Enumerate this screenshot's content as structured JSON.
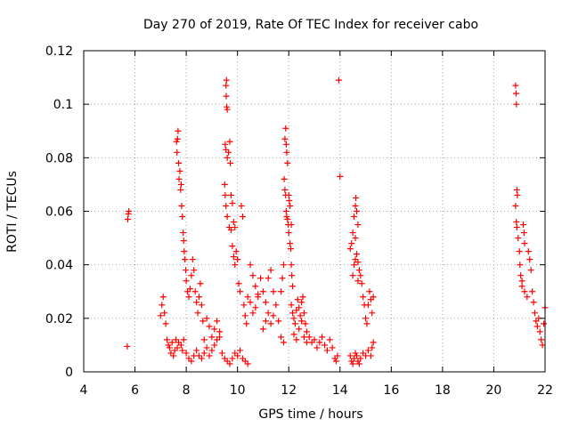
{
  "chart_data": {
    "type": "scatter",
    "title": "Day 270 of 2019, Rate Of TEC Index for receiver cabo",
    "xlabel": "GPS time / hours",
    "ylabel": "ROTI / TECUs",
    "xlim": [
      4,
      22
    ],
    "ylim": [
      0,
      0.12
    ],
    "x_ticks": [
      4,
      6,
      8,
      10,
      12,
      14,
      16,
      18,
      20,
      22
    ],
    "y_ticks": [
      0,
      0.02,
      0.04,
      0.06,
      0.08,
      0.1,
      0.12
    ],
    "x_tick_labels": [
      "4",
      "6",
      "8",
      "10",
      "12",
      "14",
      "16",
      "18",
      "20",
      "22"
    ],
    "y_tick_labels": [
      "0",
      "0.02",
      "0.04",
      "0.06",
      "0.08",
      "0.1",
      "0.12"
    ],
    "grid": true,
    "marker": "+",
    "color": "#ff0000",
    "series": [
      {
        "name": "ROTI",
        "points": [
          [
            5.72,
            0.057
          ],
          [
            5.74,
            0.059
          ],
          [
            5.76,
            0.06
          ],
          [
            5.7,
            0.0095
          ],
          [
            7.0,
            0.021
          ],
          [
            7.05,
            0.025
          ],
          [
            7.1,
            0.028
          ],
          [
            7.15,
            0.022
          ],
          [
            7.2,
            0.018
          ],
          [
            7.25,
            0.012
          ],
          [
            7.3,
            0.01
          ],
          [
            7.35,
            0.009
          ],
          [
            7.4,
            0.007
          ],
          [
            7.45,
            0.011
          ],
          [
            7.5,
            0.006
          ],
          [
            7.55,
            0.008
          ],
          [
            7.6,
            0.012
          ],
          [
            7.65,
            0.009
          ],
          [
            7.7,
            0.011
          ],
          [
            7.62,
            0.086
          ],
          [
            7.64,
            0.082
          ],
          [
            7.66,
            0.087
          ],
          [
            7.68,
            0.09
          ],
          [
            7.7,
            0.078
          ],
          [
            7.72,
            0.072
          ],
          [
            7.75,
            0.075
          ],
          [
            7.78,
            0.068
          ],
          [
            7.8,
            0.07
          ],
          [
            7.82,
            0.062
          ],
          [
            7.85,
            0.058
          ],
          [
            7.88,
            0.052
          ],
          [
            7.9,
            0.049
          ],
          [
            7.92,
            0.045
          ],
          [
            7.95,
            0.042
          ],
          [
            7.98,
            0.038
          ],
          [
            8.0,
            0.034
          ],
          [
            8.05,
            0.03
          ],
          [
            8.1,
            0.028
          ],
          [
            8.15,
            0.031
          ],
          [
            8.2,
            0.036
          ],
          [
            8.25,
            0.042
          ],
          [
            8.3,
            0.038
          ],
          [
            8.35,
            0.03
          ],
          [
            8.4,
            0.026
          ],
          [
            8.45,
            0.022
          ],
          [
            8.5,
            0.028
          ],
          [
            8.55,
            0.033
          ],
          [
            8.6,
            0.025
          ],
          [
            8.65,
            0.019
          ],
          [
            8.7,
            0.012
          ],
          [
            7.8,
            0.01
          ],
          [
            7.85,
            0.008
          ],
          [
            7.9,
            0.012
          ],
          [
            8.0,
            0.007
          ],
          [
            8.1,
            0.005
          ],
          [
            8.2,
            0.004
          ],
          [
            8.3,
            0.006
          ],
          [
            8.4,
            0.008
          ],
          [
            8.5,
            0.006
          ],
          [
            8.6,
            0.005
          ],
          [
            8.7,
            0.007
          ],
          [
            8.8,
            0.009
          ],
          [
            8.9,
            0.006
          ],
          [
            9.0,
            0.008
          ],
          [
            9.1,
            0.01
          ],
          [
            9.2,
            0.012
          ],
          [
            9.3,
            0.015
          ],
          [
            8.8,
            0.02
          ],
          [
            8.9,
            0.017
          ],
          [
            9.0,
            0.013
          ],
          [
            9.1,
            0.016
          ],
          [
            9.2,
            0.019
          ],
          [
            9.3,
            0.013
          ],
          [
            9.4,
            0.007
          ],
          [
            9.5,
            0.005
          ],
          [
            9.6,
            0.004
          ],
          [
            9.7,
            0.003
          ],
          [
            9.8,
            0.005
          ],
          [
            9.9,
            0.007
          ],
          [
            10.0,
            0.006
          ],
          [
            10.1,
            0.008
          ],
          [
            10.2,
            0.005
          ],
          [
            10.3,
            0.004
          ],
          [
            10.4,
            0.003
          ],
          [
            9.55,
            0.107
          ],
          [
            9.57,
            0.109
          ],
          [
            9.56,
            0.103
          ],
          [
            9.58,
            0.099
          ],
          [
            9.6,
            0.098
          ],
          [
            9.52,
            0.085
          ],
          [
            9.55,
            0.083
          ],
          [
            9.6,
            0.08
          ],
          [
            9.65,
            0.082
          ],
          [
            9.7,
            0.086
          ],
          [
            9.72,
            0.078
          ],
          [
            9.5,
            0.07
          ],
          [
            9.52,
            0.066
          ],
          [
            9.55,
            0.062
          ],
          [
            9.6,
            0.058
          ],
          [
            9.68,
            0.054
          ],
          [
            9.75,
            0.053
          ],
          [
            9.8,
            0.047
          ],
          [
            9.85,
            0.043
          ],
          [
            9.9,
            0.04
          ],
          [
            9.95,
            0.045
          ],
          [
            10.0,
            0.042
          ],
          [
            10.05,
            0.033
          ],
          [
            10.1,
            0.03
          ],
          [
            10.15,
            0.062
          ],
          [
            10.2,
            0.058
          ],
          [
            10.25,
            0.025
          ],
          [
            10.3,
            0.021
          ],
          [
            10.35,
            0.018
          ],
          [
            9.75,
            0.066
          ],
          [
            9.8,
            0.063
          ],
          [
            9.85,
            0.056
          ],
          [
            9.9,
            0.054
          ],
          [
            10.4,
            0.028
          ],
          [
            10.5,
            0.026
          ],
          [
            10.6,
            0.022
          ],
          [
            10.7,
            0.024
          ],
          [
            10.8,
            0.029
          ],
          [
            10.9,
            0.035
          ],
          [
            11.0,
            0.03
          ],
          [
            11.1,
            0.026
          ],
          [
            11.2,
            0.022
          ],
          [
            11.3,
            0.018
          ],
          [
            11.4,
            0.021
          ],
          [
            11.5,
            0.025
          ],
          [
            11.6,
            0.019
          ],
          [
            11.7,
            0.013
          ],
          [
            11.8,
            0.011
          ],
          [
            10.5,
            0.04
          ],
          [
            10.6,
            0.036
          ],
          [
            10.7,
            0.032
          ],
          [
            10.8,
            0.028
          ],
          [
            11.0,
            0.016
          ],
          [
            11.1,
            0.019
          ],
          [
            11.2,
            0.035
          ],
          [
            11.3,
            0.038
          ],
          [
            11.4,
            0.03
          ],
          [
            11.85,
            0.087
          ],
          [
            11.88,
            0.091
          ],
          [
            11.9,
            0.085
          ],
          [
            11.92,
            0.082
          ],
          [
            11.95,
            0.078
          ],
          [
            11.82,
            0.072
          ],
          [
            11.85,
            0.068
          ],
          [
            11.88,
            0.066
          ],
          [
            11.9,
            0.06
          ],
          [
            11.92,
            0.058
          ],
          [
            11.95,
            0.057
          ],
          [
            11.98,
            0.055
          ],
          [
            12.0,
            0.052
          ],
          [
            12.05,
            0.048
          ],
          [
            12.08,
            0.046
          ],
          [
            12.1,
            0.04
          ],
          [
            12.12,
            0.036
          ],
          [
            12.15,
            0.032
          ],
          [
            11.8,
            0.04
          ],
          [
            11.75,
            0.035
          ],
          [
            11.7,
            0.03
          ],
          [
            12.0,
            0.066
          ],
          [
            12.02,
            0.064
          ],
          [
            12.05,
            0.062
          ],
          [
            12.1,
            0.055
          ],
          [
            12.1,
            0.025
          ],
          [
            12.15,
            0.022
          ],
          [
            12.2,
            0.02
          ],
          [
            12.25,
            0.018
          ],
          [
            12.3,
            0.023
          ],
          [
            12.35,
            0.027
          ],
          [
            12.4,
            0.024
          ],
          [
            12.45,
            0.021
          ],
          [
            12.5,
            0.026
          ],
          [
            12.55,
            0.028
          ],
          [
            12.6,
            0.022
          ],
          [
            12.65,
            0.018
          ],
          [
            12.7,
            0.015
          ],
          [
            12.2,
            0.014
          ],
          [
            12.3,
            0.012
          ],
          [
            12.4,
            0.016
          ],
          [
            12.5,
            0.019
          ],
          [
            12.6,
            0.013
          ],
          [
            12.7,
            0.011
          ],
          [
            12.8,
            0.013
          ],
          [
            12.9,
            0.011
          ],
          [
            13.0,
            0.012
          ],
          [
            13.1,
            0.009
          ],
          [
            13.2,
            0.011
          ],
          [
            13.3,
            0.013
          ],
          [
            13.4,
            0.01
          ],
          [
            13.5,
            0.008
          ],
          [
            13.6,
            0.012
          ],
          [
            13.7,
            0.009
          ],
          [
            13.8,
            0.005
          ],
          [
            13.85,
            0.004
          ],
          [
            13.9,
            0.006
          ],
          [
            13.95,
            0.109
          ],
          [
            14.0,
            0.073
          ],
          [
            14.4,
            0.046
          ],
          [
            14.45,
            0.048
          ],
          [
            14.5,
            0.052
          ],
          [
            14.55,
            0.058
          ],
          [
            14.6,
            0.062
          ],
          [
            14.62,
            0.065
          ],
          [
            14.65,
            0.06
          ],
          [
            14.7,
            0.055
          ],
          [
            14.6,
            0.05
          ],
          [
            14.65,
            0.044
          ],
          [
            14.7,
            0.041
          ],
          [
            14.75,
            0.038
          ],
          [
            14.8,
            0.036
          ],
          [
            14.85,
            0.033
          ],
          [
            14.9,
            0.028
          ],
          [
            14.95,
            0.025
          ],
          [
            15.0,
            0.02
          ],
          [
            15.05,
            0.018
          ],
          [
            15.1,
            0.025
          ],
          [
            15.15,
            0.03
          ],
          [
            15.2,
            0.027
          ],
          [
            15.25,
            0.022
          ],
          [
            15.3,
            0.028
          ],
          [
            14.5,
            0.036
          ],
          [
            14.55,
            0.04
          ],
          [
            14.6,
            0.042
          ],
          [
            14.7,
            0.034
          ],
          [
            14.4,
            0.006
          ],
          [
            14.45,
            0.004
          ],
          [
            14.5,
            0.003
          ],
          [
            14.55,
            0.005
          ],
          [
            14.6,
            0.007
          ],
          [
            14.65,
            0.006
          ],
          [
            14.7,
            0.004
          ],
          [
            14.75,
            0.003
          ],
          [
            14.8,
            0.005
          ],
          [
            14.9,
            0.007
          ],
          [
            15.0,
            0.006
          ],
          [
            15.1,
            0.008
          ],
          [
            15.2,
            0.006
          ],
          [
            15.25,
            0.009
          ],
          [
            15.3,
            0.011
          ],
          [
            20.85,
            0.107
          ],
          [
            20.87,
            0.104
          ],
          [
            20.88,
            0.1
          ],
          [
            20.9,
            0.068
          ],
          [
            20.92,
            0.066
          ],
          [
            20.85,
            0.062
          ],
          [
            20.88,
            0.056
          ],
          [
            20.9,
            0.054
          ],
          [
            20.95,
            0.05
          ],
          [
            21.0,
            0.045
          ],
          [
            21.02,
            0.04
          ],
          [
            21.05,
            0.036
          ],
          [
            21.1,
            0.034
          ],
          [
            21.15,
            0.055
          ],
          [
            21.18,
            0.052
          ],
          [
            21.2,
            0.048
          ],
          [
            21.1,
            0.032
          ],
          [
            21.2,
            0.03
          ],
          [
            21.3,
            0.028
          ],
          [
            21.35,
            0.045
          ],
          [
            21.4,
            0.042
          ],
          [
            21.45,
            0.038
          ],
          [
            21.5,
            0.03
          ],
          [
            21.55,
            0.026
          ],
          [
            21.6,
            0.022
          ],
          [
            21.65,
            0.019
          ],
          [
            21.7,
            0.017
          ],
          [
            21.75,
            0.02
          ],
          [
            21.8,
            0.015
          ],
          [
            21.85,
            0.012
          ],
          [
            21.9,
            0.01
          ],
          [
            21.95,
            0.018
          ],
          [
            22.0,
            0.024
          ]
        ]
      }
    ]
  }
}
